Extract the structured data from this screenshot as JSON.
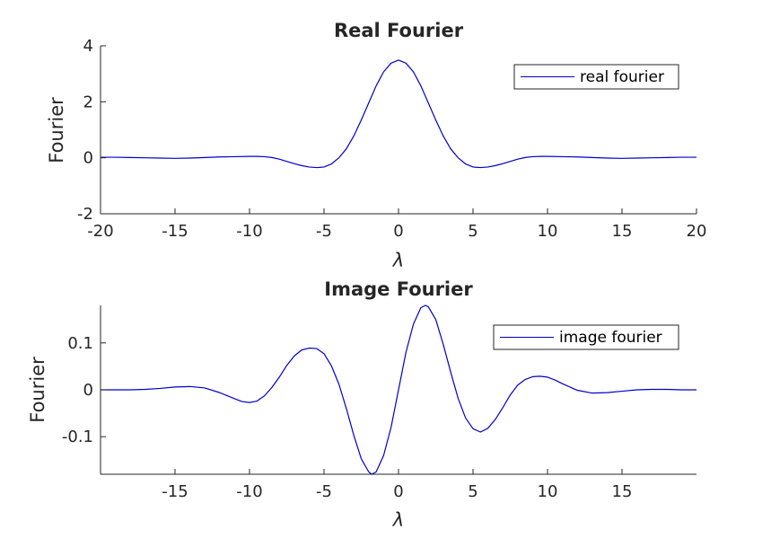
{
  "chart_data": [
    {
      "type": "line",
      "title": "Real Fourier",
      "xlabel": "λ",
      "ylabel": "Fourier",
      "xlim": [
        -20,
        20
      ],
      "ylim": [
        -2,
        4
      ],
      "xticks": [
        -20,
        -15,
        -10,
        -5,
        0,
        5,
        10,
        15,
        20
      ],
      "xtick_labels": [
        "-20",
        "-15",
        "-10",
        "-5",
        "0",
        "5",
        "10",
        "15",
        "20"
      ],
      "yticks": [
        -2,
        0,
        2,
        4
      ],
      "ytick_labels": [
        "-2",
        "0",
        "2",
        "4"
      ],
      "grid": false,
      "legend_position": "top-right",
      "series": [
        {
          "name": "real fourier",
          "color": "#0000cc",
          "x": [
            -20,
            -19,
            -18,
            -17,
            -16,
            -15,
            -14,
            -13,
            -12,
            -11,
            -10,
            -9.5,
            -9,
            -8.5,
            -8,
            -7.5,
            -7,
            -6.5,
            -6,
            -5.5,
            -5.2,
            -5,
            -4.5,
            -4,
            -3.5,
            -3,
            -2.5,
            -2,
            -1.5,
            -1,
            -0.5,
            0,
            0.5,
            1,
            1.5,
            2,
            2.5,
            3,
            3.5,
            4,
            4.5,
            5,
            5.2,
            5.5,
            6,
            6.5,
            7,
            7.5,
            8,
            8.5,
            9,
            9.5,
            10,
            11,
            12,
            13,
            14,
            15,
            16,
            17,
            18,
            19,
            20
          ],
          "y": [
            0.02,
            0.02,
            0.01,
            0,
            -0.01,
            -0.02,
            -0.01,
            0.01,
            0.03,
            0.04,
            0.05,
            0.05,
            0.04,
            0.01,
            -0.05,
            -0.13,
            -0.21,
            -0.28,
            -0.33,
            -0.35,
            -0.34,
            -0.33,
            -0.22,
            0.0,
            0.32,
            0.78,
            1.35,
            1.96,
            2.57,
            3.07,
            3.38,
            3.49,
            3.38,
            3.07,
            2.57,
            1.96,
            1.35,
            0.78,
            0.32,
            0.0,
            -0.22,
            -0.33,
            -0.34,
            -0.35,
            -0.33,
            -0.28,
            -0.21,
            -0.13,
            -0.05,
            0.01,
            0.04,
            0.05,
            0.05,
            0.04,
            0.03,
            0.01,
            -0.01,
            -0.02,
            -0.01,
            0,
            0.01,
            0.02,
            0.02
          ]
        }
      ]
    },
    {
      "type": "line",
      "title": "Image Fourier",
      "xlabel": "λ",
      "ylabel": "Fourier",
      "xlim": [
        -20,
        20
      ],
      "ylim": [
        -0.18,
        0.18
      ],
      "xticks": [
        -15,
        -10,
        -5,
        0,
        5,
        10,
        15
      ],
      "xtick_labels": [
        "-15",
        "-10",
        "-5",
        "0",
        "5",
        "10",
        "15"
      ],
      "yticks": [
        -0.1,
        0,
        0.1
      ],
      "ytick_labels": [
        "-0.1",
        "0",
        "0.1"
      ],
      "grid": false,
      "legend_position": "top-right",
      "series": [
        {
          "name": "image fourier",
          "color": "#0000cc",
          "x": [
            -20,
            -19,
            -18,
            -17,
            -16,
            -15,
            -14,
            -13,
            -12,
            -11,
            -10.5,
            -10,
            -9.5,
            -9,
            -8.5,
            -8,
            -7.5,
            -7,
            -6.5,
            -6,
            -5.5,
            -5,
            -4.5,
            -4,
            -3.5,
            -3,
            -2.5,
            -2,
            -1.8,
            -1.5,
            -1,
            -0.5,
            0,
            0.5,
            1,
            1.5,
            1.8,
            2,
            2.5,
            3,
            3.5,
            4,
            4.5,
            5,
            5.5,
            6,
            6.5,
            7,
            7.5,
            8,
            8.5,
            9,
            9.5,
            10,
            10.5,
            11,
            12,
            13,
            14,
            15,
            16,
            17,
            18,
            19,
            20
          ],
          "y": [
            0,
            0,
            0,
            0.001,
            0.003,
            0.006,
            0.007,
            0.004,
            -0.006,
            -0.019,
            -0.025,
            -0.027,
            -0.024,
            -0.013,
            0.005,
            0.027,
            0.052,
            0.072,
            0.085,
            0.089,
            0.088,
            0.077,
            0.051,
            0.012,
            -0.04,
            -0.097,
            -0.147,
            -0.175,
            -0.18,
            -0.175,
            -0.14,
            -0.08,
            0,
            0.08,
            0.14,
            0.175,
            0.18,
            0.177,
            0.15,
            0.097,
            0.038,
            -0.018,
            -0.06,
            -0.083,
            -0.09,
            -0.082,
            -0.063,
            -0.038,
            -0.011,
            0.01,
            0.022,
            0.028,
            0.029,
            0.027,
            0.021,
            0.013,
            -0.001,
            -0.007,
            -0.006,
            -0.003,
            0,
            0.001,
            0.001,
            0,
            0
          ]
        }
      ]
    }
  ]
}
